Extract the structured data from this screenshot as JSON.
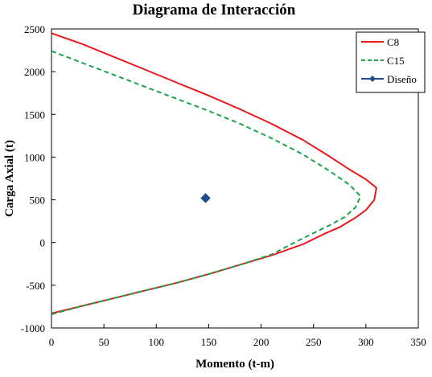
{
  "chart_data": {
    "type": "line",
    "title": "Diagrama de Interacción",
    "xlabel": "Momento (t-m)",
    "ylabel": "Carga Axial (t)",
    "xlim": [
      0,
      350
    ],
    "ylim": [
      -1000,
      2500
    ],
    "xticks": [
      0,
      50,
      100,
      150,
      200,
      250,
      300,
      350
    ],
    "yticks": [
      -1000,
      -500,
      0,
      500,
      1000,
      1500,
      2000,
      2500
    ],
    "grid": false,
    "legend_position": "top-right",
    "series": [
      {
        "name": "C8",
        "color": "#e8191c",
        "style": "solid",
        "marker": "none",
        "points": [
          [
            0,
            2450
          ],
          [
            30,
            2320
          ],
          [
            60,
            2170
          ],
          [
            90,
            2020
          ],
          [
            120,
            1870
          ],
          [
            150,
            1720
          ],
          [
            180,
            1560
          ],
          [
            210,
            1390
          ],
          [
            240,
            1200
          ],
          [
            265,
            1010
          ],
          [
            285,
            850
          ],
          [
            300,
            740
          ],
          [
            310,
            640
          ],
          [
            308,
            500
          ],
          [
            300,
            380
          ],
          [
            290,
            290
          ],
          [
            275,
            180
          ],
          [
            260,
            100
          ],
          [
            240,
            -20
          ],
          [
            210,
            -150
          ],
          [
            180,
            -260
          ],
          [
            150,
            -370
          ],
          [
            120,
            -470
          ],
          [
            90,
            -560
          ],
          [
            60,
            -650
          ],
          [
            30,
            -740
          ],
          [
            0,
            -830
          ]
        ]
      },
      {
        "name": "C15",
        "color": "#1aa34a",
        "style": "dashed",
        "marker": "none",
        "points": [
          [
            0,
            2240
          ],
          [
            30,
            2100
          ],
          [
            60,
            1960
          ],
          [
            90,
            1820
          ],
          [
            120,
            1680
          ],
          [
            150,
            1540
          ],
          [
            180,
            1390
          ],
          [
            210,
            1220
          ],
          [
            240,
            1030
          ],
          [
            265,
            840
          ],
          [
            285,
            670
          ],
          [
            295,
            540
          ],
          [
            290,
            410
          ],
          [
            280,
            300
          ],
          [
            265,
            200
          ],
          [
            250,
            110
          ],
          [
            235,
            20
          ],
          [
            210,
            -140
          ],
          [
            180,
            -260
          ],
          [
            150,
            -370
          ],
          [
            120,
            -470
          ],
          [
            90,
            -560
          ],
          [
            60,
            -650
          ],
          [
            30,
            -740
          ],
          [
            0,
            -840
          ]
        ]
      },
      {
        "name": "Diseño",
        "color": "#1f4e8c",
        "style": "none",
        "marker": "diamond",
        "points": [
          [
            147,
            520
          ]
        ]
      }
    ]
  }
}
